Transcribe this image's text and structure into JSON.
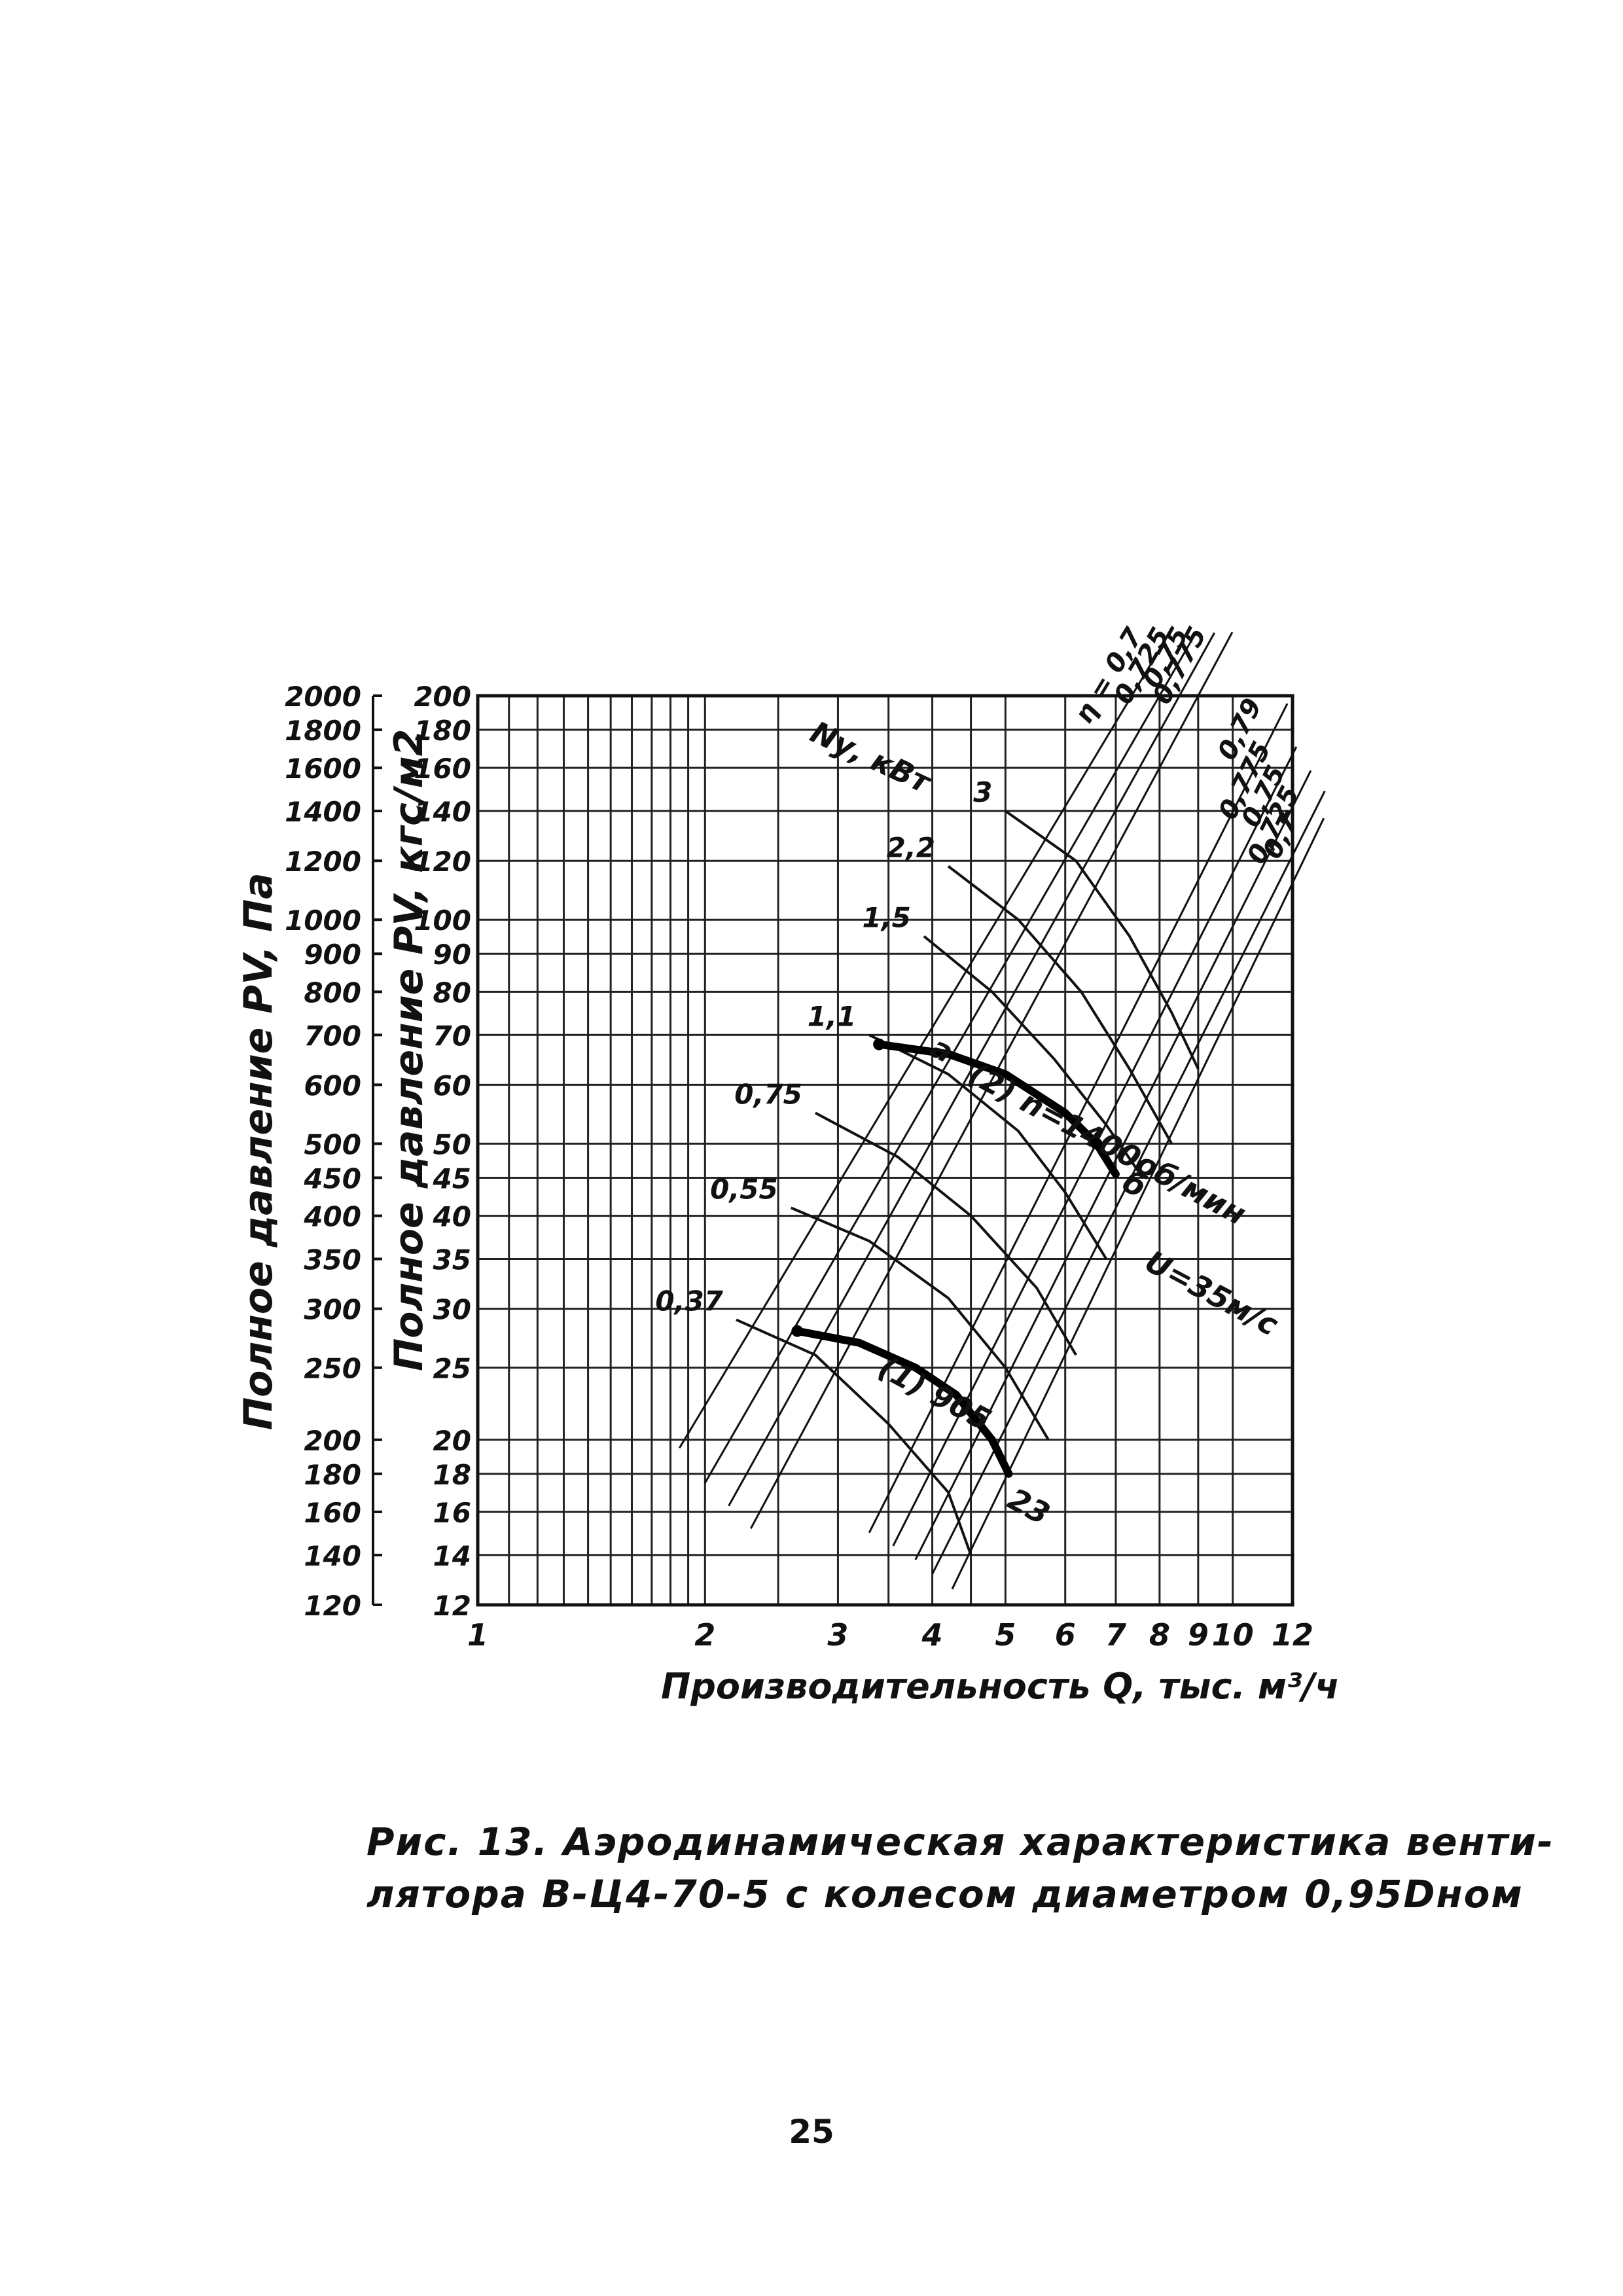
{
  "chart_data": {
    "type": "line",
    "x_scale": "log",
    "y_scale": "log",
    "xlabel": "Производительность Q, тыс. м³/ч",
    "ylabel_left": "Полное давление PV, Па",
    "ylabel_right": "Полное давление PV, кгс/м2",
    "xlim": [
      1,
      12
    ],
    "ylim": [
      12,
      200
    ],
    "x_ticks": [
      1,
      2,
      3,
      4,
      5,
      6,
      7,
      8,
      9,
      10,
      12
    ],
    "x_tick_labels": [
      "1",
      "2",
      "3",
      "4",
      "5",
      "6",
      "7",
      "8",
      "9",
      "10",
      "12"
    ],
    "y_ticks_kgf": [
      12,
      14,
      16,
      18,
      20,
      25,
      30,
      35,
      40,
      45,
      50,
      60,
      70,
      80,
      90,
      100,
      120,
      140,
      160,
      180,
      200
    ],
    "y_tick_labels_kgf": [
      "12",
      "14",
      "16",
      "18",
      "20",
      "25",
      "30",
      "35",
      "40",
      "45",
      "50",
      "60",
      "70",
      "80",
      "90",
      "100",
      "120",
      "140",
      "160",
      "180",
      "200"
    ],
    "y_ticks_pa": [
      120,
      140,
      160,
      180,
      200,
      250,
      300,
      350,
      400,
      450,
      500,
      600,
      700,
      800,
      900,
      1000,
      1200,
      1400,
      1600,
      1800,
      2000
    ],
    "y_tick_labels_pa": [
      "120",
      "140",
      "160",
      "180",
      "200",
      "250",
      "300",
      "350",
      "400",
      "450",
      "500",
      "600",
      "700",
      "800",
      "900",
      "1000",
      "1200",
      "1400",
      "1600",
      "1800",
      "2000"
    ],
    "grid": true,
    "grid_x_lines": [
      1,
      1.1,
      1.2,
      1.3,
      1.4,
      1.5,
      1.6,
      1.7,
      1.8,
      1.9,
      2,
      2.5,
      3,
      3.5,
      4,
      4.5,
      5,
      6,
      7,
      8,
      9,
      10,
      12
    ],
    "power_label": "Nу, кВт",
    "efficiency_label": "η = 0,7",
    "efficiency_lines": [
      {
        "label": "η = 0,7",
        "points": [
          [
            1.85,
            19.5
          ],
          [
            7.35,
            200
          ]
        ]
      },
      {
        "label": "0,725",
        "points": [
          [
            2.0,
            17.5
          ],
          [
            8.0,
            200
          ]
        ]
      },
      {
        "label": "0,75",
        "points": [
          [
            2.15,
            16.3
          ],
          [
            8.5,
            200
          ]
        ]
      },
      {
        "label": "0,775",
        "points": [
          [
            2.3,
            15.2
          ],
          [
            9.0,
            200
          ]
        ]
      },
      {
        "label": "0,79",
        "points": [
          [
            3.3,
            15
          ],
          [
            10.7,
            160
          ]
        ]
      },
      {
        "label": "0,775",
        "points": [
          [
            3.55,
            14.4
          ],
          [
            11.0,
            140
          ]
        ]
      },
      {
        "label": "0,75",
        "points": [
          [
            3.8,
            13.8
          ],
          [
            11.5,
            130
          ]
        ]
      },
      {
        "label": "0,725",
        "points": [
          [
            4.0,
            13.2
          ],
          [
            12.0,
            122
          ]
        ]
      },
      {
        "label": "0,7",
        "points": [
          [
            4.25,
            12.6
          ],
          [
            12.0,
            112
          ]
        ]
      }
    ],
    "power_curves": [
      {
        "label": "3",
        "points": [
          [
            5.0,
            140
          ],
          [
            6.2,
            120
          ],
          [
            7.3,
            95
          ],
          [
            8.3,
            75
          ],
          [
            9.0,
            63
          ]
        ]
      },
      {
        "label": "2,2",
        "points": [
          [
            4.2,
            118
          ],
          [
            5.2,
            100
          ],
          [
            6.3,
            80
          ],
          [
            7.3,
            63
          ],
          [
            8.3,
            50
          ]
        ]
      },
      {
        "label": "1,5",
        "points": [
          [
            3.9,
            95
          ],
          [
            4.8,
            80
          ],
          [
            5.8,
            65
          ],
          [
            6.8,
            53
          ],
          [
            7.6,
            45
          ]
        ]
      },
      {
        "label": "1,1",
        "points": [
          [
            3.3,
            70
          ],
          [
            4.2,
            62
          ],
          [
            5.2,
            52
          ],
          [
            6.0,
            43
          ],
          [
            6.8,
            35
          ]
        ]
      },
      {
        "label": "0,75",
        "points": [
          [
            2.8,
            55
          ],
          [
            3.6,
            48
          ],
          [
            4.5,
            40
          ],
          [
            5.5,
            32
          ],
          [
            6.2,
            26
          ]
        ]
      },
      {
        "label": "0,55",
        "points": [
          [
            2.6,
            41
          ],
          [
            3.3,
            37
          ],
          [
            4.2,
            31
          ],
          [
            5.0,
            25
          ],
          [
            5.7,
            20
          ]
        ]
      },
      {
        "label": "0,37",
        "points": [
          [
            2.2,
            29
          ],
          [
            2.8,
            26
          ],
          [
            3.5,
            21
          ],
          [
            4.2,
            17
          ],
          [
            4.5,
            14
          ]
        ]
      }
    ],
    "series": [
      {
        "name": "(2) n=1400об/мин",
        "points": [
          [
            3.4,
            68
          ],
          [
            4.2,
            66
          ],
          [
            5.0,
            62
          ],
          [
            6.0,
            55
          ],
          [
            6.6,
            50
          ],
          [
            7.0,
            45.5
          ]
        ]
      },
      {
        "name": "(1) 905",
        "points": [
          [
            2.65,
            28
          ],
          [
            3.2,
            27
          ],
          [
            3.8,
            25
          ],
          [
            4.3,
            23
          ],
          [
            4.8,
            20
          ],
          [
            5.05,
            18
          ]
        ]
      }
    ],
    "series_annotations": [
      {
        "text": "(2) n=1400об/мин",
        "series_index": 0
      },
      {
        "text": "(1) 905",
        "series_index": 1
      }
    ],
    "point_labels": [
      {
        "text": "а",
        "x": 3.95,
        "y": 66
      },
      {
        "text": "б",
        "x": 7.1,
        "y": 43.5
      },
      {
        "text": "U=35м/с",
        "x": 7.6,
        "y": 34
      },
      {
        "text": "23",
        "x": 5.0,
        "y": 16.3
      }
    ],
    "marked_points": [
      [
        3.4,
        68
      ],
      [
        6.6,
        50
      ],
      [
        2.65,
        28
      ]
    ],
    "title": "Рис. 13. Аэродинамическая характеристика вентилятора В-Ц4-70-5 с колесом диаметром 0,95Dном"
  },
  "caption": {
    "line1": "Рис. 13. Аэродинамическая характеристика венти-",
    "line2": "лятора В-Ц4-70-5 с колесом диаметром 0,95Dном"
  },
  "page_number": "25"
}
